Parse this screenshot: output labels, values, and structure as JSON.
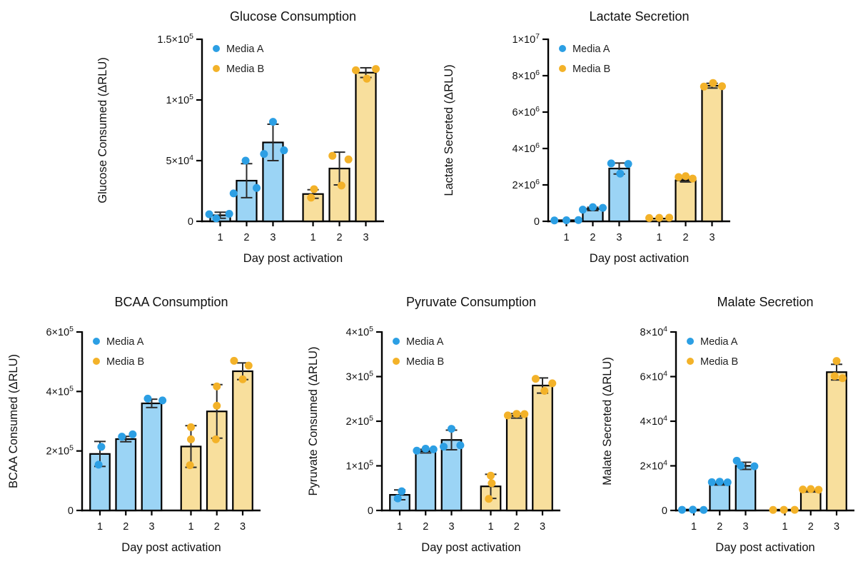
{
  "figure": {
    "background": "#ffffff",
    "colors": {
      "media_a_fill": "#9BD4F5",
      "media_a_dot": "#2C9FE4",
      "media_b_fill": "#F8DF9D",
      "media_b_dot": "#F3B229",
      "axis": "#000000",
      "error_bar": "#2B2B2B",
      "text": "#111111"
    },
    "legend": {
      "items": [
        {
          "label": "Media A",
          "dot_color": "#2C9FE4"
        },
        {
          "label": "Media B",
          "dot_color": "#F3B229"
        }
      ]
    }
  },
  "chart_data": [
    {
      "type": "bar",
      "title": "Glucose Consumption",
      "ylabel": "Glucose Consumed (ΔRLU)",
      "xlabel": "Day post activation",
      "ylim": [
        0,
        150000
      ],
      "yticks": [
        {
          "v": 0,
          "label": "0"
        },
        {
          "v": 50000,
          "label": "5×10^4"
        },
        {
          "v": 100000,
          "label": "1×10^5"
        },
        {
          "v": 150000,
          "label": "1.5×10^5"
        }
      ],
      "categories": [
        "1",
        "2",
        "3",
        "1",
        "2",
        "3"
      ],
      "grid": false,
      "legend_position": "top-left-inside",
      "legend": [
        "Media A",
        "Media B"
      ],
      "series": [
        {
          "name": "Media A",
          "bars": [
            {
              "mean": 5000,
              "err": 2500,
              "points": [
                [
                  -0.55,
                  5800
                ],
                [
                  -0.2,
                  2400
                ],
                [
                  0.45,
                  6200
                ]
              ]
            },
            {
              "mean": 33500,
              "err": 14000,
              "points": [
                [
                  -0.65,
                  23000
                ],
                [
                  0.5,
                  27500
                ],
                [
                  -0.05,
                  50000
                ]
              ]
            },
            {
              "mean": 65000,
              "err": 15000,
              "points": [
                [
                  -0.45,
                  55500
                ],
                [
                  0.55,
                  58500
                ],
                [
                  0,
                  82000
                ]
              ]
            }
          ]
        },
        {
          "name": "Media B",
          "bars": [
            {
              "mean": 22500,
              "err": 3500,
              "points": [
                [
                  0.05,
                  26500
                ],
                [
                  -0.1,
                  19500
                ]
              ]
            },
            {
              "mean": 43500,
              "err": 13500,
              "points": [
                [
                  -0.35,
                  54000
                ],
                [
                  0.45,
                  51000
                ],
                [
                  0.1,
                  29500
                ]
              ]
            },
            {
              "mean": 122500,
              "err": 4000,
              "points": [
                [
                  -0.5,
                  124500
                ],
                [
                  0.5,
                  125500
                ],
                [
                  0.05,
                  117500
                ]
              ]
            }
          ]
        }
      ]
    },
    {
      "type": "bar",
      "title": "Lactate Secretion",
      "ylabel": "Lactate Secreted (ΔRLU)",
      "xlabel": "Day post activation",
      "ylim": [
        0,
        10000000
      ],
      "yticks": [
        {
          "v": 0,
          "label": "0"
        },
        {
          "v": 2000000,
          "label": "2×10^6"
        },
        {
          "v": 4000000,
          "label": "4×10^6"
        },
        {
          "v": 6000000,
          "label": "6×10^6"
        },
        {
          "v": 8000000,
          "label": "8×10^6"
        },
        {
          "v": 10000000,
          "label": "1×10^7"
        }
      ],
      "categories": [
        "1",
        "2",
        "3",
        "1",
        "2",
        "3"
      ],
      "grid": false,
      "legend_position": "top-left-inside",
      "legend": [
        "Media A",
        "Media B"
      ],
      "series": [
        {
          "name": "Media A",
          "bars": [
            {
              "mean": 60000,
              "err": 0,
              "points": [
                [
                  -0.6,
                  50000
                ],
                [
                  0,
                  60000
                ],
                [
                  0.6,
                  70000
                ]
              ]
            },
            {
              "mean": 680000,
              "err": 90000,
              "points": [
                [
                  -0.5,
                  640000
                ],
                [
                  0,
                  780000
                ],
                [
                  0.5,
                  740000
                ]
              ]
            },
            {
              "mean": 2900000,
              "err": 300000,
              "points": [
                [
                  -0.4,
                  3180000
                ],
                [
                  0.05,
                  2620000
                ],
                [
                  0.45,
                  3150000
                ]
              ]
            }
          ]
        },
        {
          "name": "Media B",
          "bars": [
            {
              "mean": 150000,
              "err": 0,
              "points": [
                [
                  -0.5,
                  180000
                ],
                [
                  0,
                  190000
                ],
                [
                  0.5,
                  200000
                ]
              ]
            },
            {
              "mean": 2250000,
              "err": 90000,
              "points": [
                [
                  -0.35,
                  2430000
                ],
                [
                  0,
                  2480000
                ],
                [
                  0.35,
                  2350000
                ]
              ]
            },
            {
              "mean": 7450000,
              "err": 130000,
              "points": [
                [
                  -0.4,
                  7400000
                ],
                [
                  0.05,
                  7600000
                ],
                [
                  0.5,
                  7420000
                ]
              ]
            }
          ]
        }
      ]
    },
    {
      "type": "bar",
      "title": "BCAA Consumption",
      "ylabel": "BCAA Consumed (ΔRLU)",
      "xlabel": "Day post activation",
      "ylim": [
        0,
        600000
      ],
      "yticks": [
        {
          "v": 0,
          "label": "0"
        },
        {
          "v": 200000,
          "label": "2×10^5"
        },
        {
          "v": 400000,
          "label": "4×10^5"
        },
        {
          "v": 600000,
          "label": "6×10^5"
        }
      ],
      "categories": [
        "1",
        "2",
        "3",
        "1",
        "2",
        "3"
      ],
      "grid": false,
      "legend_position": "top-left-inside",
      "legend": [
        "Media A",
        "Media B"
      ],
      "series": [
        {
          "name": "Media A",
          "bars": [
            {
              "mean": 190000,
              "err": 42000,
              "points": [
                [
                  0.07,
                  214000
                ],
                [
                  -0.07,
                  154000
                ]
              ]
            },
            {
              "mean": 240000,
              "err": 9000,
              "points": [
                [
                  -0.2,
                  248000
                ],
                [
                  0.35,
                  256000
                ]
              ]
            },
            {
              "mean": 360000,
              "err": 14000,
              "points": [
                [
                  -0.2,
                  376000
                ],
                [
                  0.55,
                  370000
                ]
              ]
            }
          ]
        },
        {
          "name": "Media B",
          "bars": [
            {
              "mean": 215000,
              "err": 70000,
              "points": [
                [
                  0,
                  280000
                ],
                [
                  0,
                  239000
                ],
                [
                  -0.05,
                  152000
                ]
              ]
            },
            {
              "mean": 333000,
              "err": 90000,
              "points": [
                [
                  0,
                  417000
                ],
                [
                  0,
                  352000
                ],
                [
                  -0.05,
                  239000
                ]
              ]
            },
            {
              "mean": 468000,
              "err": 28000,
              "points": [
                [
                  -0.44,
                  503000
                ],
                [
                  0.3,
                  487000
                ],
                [
                  0,
                  441000
                ]
              ]
            }
          ]
        }
      ]
    },
    {
      "type": "bar",
      "title": "Pyruvate Consumption",
      "ylabel": "Pyruvate Consumed (ΔRLU)",
      "xlabel": "Day post activation",
      "ylim": [
        0,
        400000
      ],
      "yticks": [
        {
          "v": 0,
          "label": "0"
        },
        {
          "v": 100000,
          "label": "1×10^5"
        },
        {
          "v": 200000,
          "label": "2×10^5"
        },
        {
          "v": 300000,
          "label": "3×10^5"
        },
        {
          "v": 400000,
          "label": "4×10^5"
        }
      ],
      "categories": [
        "1",
        "2",
        "3",
        "1",
        "2",
        "3"
      ],
      "grid": false,
      "legend_position": "top-left-inside",
      "legend": [
        "Media A",
        "Media B"
      ],
      "series": [
        {
          "name": "Media A",
          "bars": [
            {
              "mean": 35000,
              "err": 11000,
              "points": [
                [
                  0.1,
                  43000
                ],
                [
                  -0.1,
                  27000
                ]
              ]
            },
            {
              "mean": 133000,
              "err": 4000,
              "points": [
                [
                  -0.45,
                  134000
                ],
                [
                  0,
                  138500
                ],
                [
                  0.4,
                  137000
                ]
              ]
            },
            {
              "mean": 158000,
              "err": 22000,
              "points": [
                [
                  -0.4,
                  143000
                ],
                [
                  0.45,
                  146000
                ],
                [
                  0,
                  183000
                ]
              ]
            }
          ]
        },
        {
          "name": "Media B",
          "bars": [
            {
              "mean": 54000,
              "err": 27000,
              "points": [
                [
                  0,
                  78000
                ],
                [
                  0.05,
                  61000
                ],
                [
                  -0.1,
                  26000
                ]
              ]
            },
            {
              "mean": 212000,
              "err": 5000,
              "points": [
                [
                  -0.45,
                  213000
                ],
                [
                  0,
                  216500
                ],
                [
                  0.4,
                  216000
                ]
              ]
            },
            {
              "mean": 280000,
              "err": 17000,
              "points": [
                [
                  -0.35,
                  295000
                ],
                [
                  0.5,
                  285000
                ],
                [
                  0.1,
                  268000
                ]
              ]
            }
          ]
        }
      ]
    },
    {
      "type": "bar",
      "title": "Malate Secretion",
      "ylabel": "Malate Secreted (ΔRLU)",
      "xlabel": "Day post activation",
      "ylim": [
        0,
        80000
      ],
      "yticks": [
        {
          "v": 0,
          "label": "0"
        },
        {
          "v": 20000,
          "label": "2×10^4"
        },
        {
          "v": 40000,
          "label": "4×10^4"
        },
        {
          "v": 60000,
          "label": "6×10^4"
        },
        {
          "v": 80000,
          "label": "8×10^4"
        }
      ],
      "categories": [
        "1",
        "2",
        "3",
        "1",
        "2",
        "3"
      ],
      "grid": false,
      "legend_position": "top-left-inside",
      "legend": [
        "Media A",
        "Media B"
      ],
      "series": [
        {
          "name": "Media A",
          "bars": [
            {
              "mean": 400,
              "err": 0,
              "points": [
                [
                  -0.6,
                  300
                ],
                [
                  -0.05,
                  350
                ],
                [
                  0.5,
                  250
                ]
              ]
            },
            {
              "mean": 12000,
              "err": 600,
              "points": [
                [
                  -0.4,
                  12700
                ],
                [
                  0,
                  12900
                ],
                [
                  0.4,
                  12600
                ]
              ]
            },
            {
              "mean": 20000,
              "err": 1600,
              "points": [
                [
                  -0.45,
                  22300
                ],
                [
                  -0.25,
                  20100
                ],
                [
                  0.45,
                  19800
                ]
              ]
            }
          ]
        },
        {
          "name": "Media B",
          "bars": [
            {
              "mean": 350,
              "err": 0,
              "points": [
                [
                  -0.6,
                  250
                ],
                [
                  -0.05,
                  300
                ],
                [
                  0.5,
                  300
                ]
              ]
            },
            {
              "mean": 8800,
              "err": 500,
              "points": [
                [
                  -0.4,
                  9400
                ],
                [
                  0,
                  9600
                ],
                [
                  0.4,
                  9300
                ]
              ]
            },
            {
              "mean": 62000,
              "err": 3500,
              "points": [
                [
                  0,
                  67000
                ],
                [
                  -0.1,
                  60200
                ],
                [
                  0.3,
                  59300
                ]
              ]
            }
          ]
        }
      ]
    }
  ]
}
